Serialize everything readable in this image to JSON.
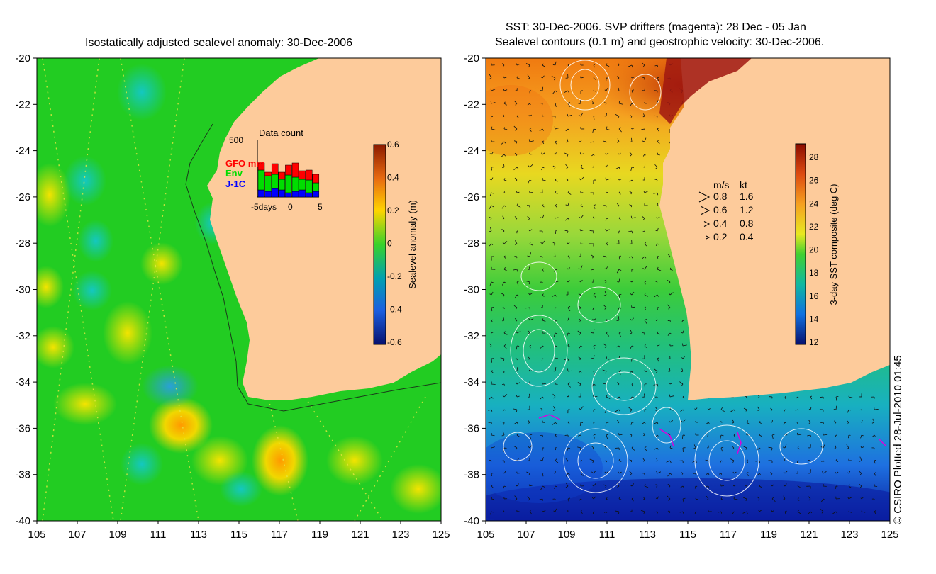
{
  "left_panel": {
    "title": "Isostatically adjusted sealevel anomaly: 30-Dec-2006",
    "x_ticks": [
      "105",
      "107",
      "109",
      "111",
      "113",
      "115",
      "117",
      "119",
      "121",
      "123",
      "125"
    ],
    "y_ticks": [
      "-20",
      "-22",
      "-24",
      "-26",
      "-28",
      "-30",
      "-32",
      "-34",
      "-36",
      "-38",
      "-40"
    ],
    "lon_range": [
      105,
      125
    ],
    "lat_range": [
      -40,
      -20
    ],
    "colorbar": {
      "label": "Sealevel anomaly (m)",
      "ticks": [
        "0.6",
        "0.4",
        "0.2",
        "0",
        "-0.2",
        "-0.4",
        "-0.6"
      ],
      "range": [
        -0.6,
        0.6
      ]
    },
    "data_count": {
      "title": "Data count",
      "ymax_label": "500",
      "x_labels": [
        "-5days",
        "0",
        "5"
      ],
      "legend": [
        {
          "label": "GFO mm",
          "color": "#ff0000"
        },
        {
          "label": "Env",
          "color": "#00dd00"
        },
        {
          "label": "J-1C",
          "color": "#0000ff"
        }
      ]
    }
  },
  "right_panel": {
    "title_line1": "SST: 30-Dec-2006. SVP drifters (magenta): 28 Dec - 05 Jan",
    "title_line2": "Sealevel contours (0.1 m) and geostrophic velocity: 30-Dec-2006.",
    "x_ticks": [
      "105",
      "107",
      "109",
      "111",
      "113",
      "115",
      "117",
      "119",
      "121",
      "123",
      "125"
    ],
    "y_ticks": [
      "-20",
      "-22",
      "-24",
      "-26",
      "-28",
      "-30",
      "-32",
      "-34",
      "-36",
      "-38",
      "-40"
    ],
    "lon_range": [
      105,
      125
    ],
    "lat_range": [
      -40,
      -20
    ],
    "colorbar": {
      "label": "3-day SST composite (deg C)",
      "ticks": [
        "28",
        "26",
        "24",
        "22",
        "20",
        "18",
        "16",
        "14",
        "12"
      ],
      "range": [
        12,
        29
      ]
    },
    "velocity_legend": {
      "header_ms": "m/s",
      "header_kt": "kt",
      "rows": [
        {
          "ms": "0.8",
          "kt": "1.6"
        },
        {
          "ms": "0.6",
          "kt": "1.2"
        },
        {
          "ms": "0.4",
          "kt": "0.8"
        },
        {
          "ms": "0.2",
          "kt": "0.4"
        }
      ]
    }
  },
  "credit": "© CSIRO Plotted 28-Jul-2010 01:45",
  "colors": {
    "land": "#fdcb9b",
    "sla_base": "#22cc22",
    "sst_cold": "#0a2aa8",
    "sst_warm": "#a01010",
    "drifter": "#dd00dd"
  }
}
